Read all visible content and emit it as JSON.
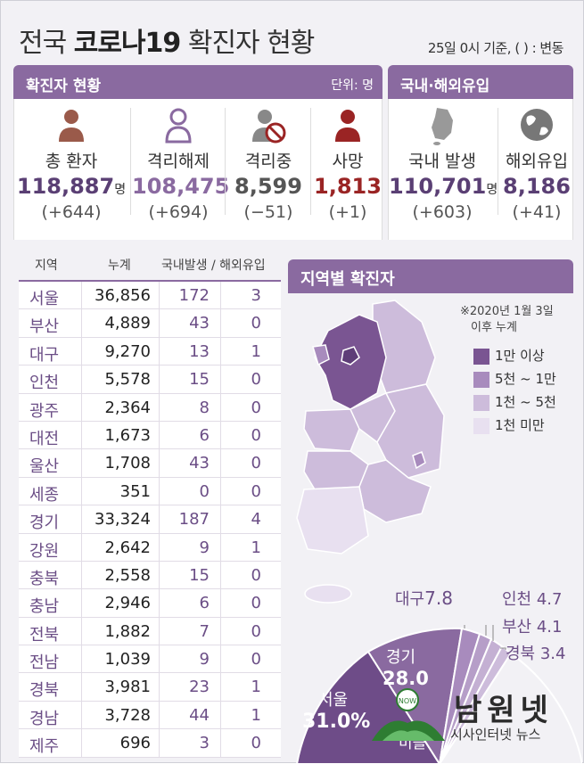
{
  "title": {
    "prefix": "전국",
    "bold": "코로나19",
    "suffix": "확진자 현황"
  },
  "timestamp": "25일 0시 기준, ( ) : 변동",
  "confirmed": {
    "header": "확진자 현황",
    "unit": "단위: 명",
    "stats": [
      {
        "label": "총 환자",
        "value": "118,887",
        "unit": "명",
        "delta": "(+644)",
        "color": "#5a3f74"
      },
      {
        "label": "격리해제",
        "value": "108,475",
        "unit": "",
        "delta": "(+694)",
        "color": "#8a6aa0"
      },
      {
        "label": "격리중",
        "value": "8,599",
        "unit": "",
        "delta": "(−51)",
        "color": "#555555"
      },
      {
        "label": "사망",
        "value": "1,813",
        "unit": "",
        "delta": "(+1)",
        "color": "#9a2424"
      }
    ]
  },
  "domestic_overseas": {
    "header": "국내·해외유입",
    "stats": [
      {
        "label": "국내 발생",
        "value": "110,701",
        "unit": "명",
        "delta": "(+603)",
        "color": "#5a3f74"
      },
      {
        "label": "해외유입",
        "value": "8,186",
        "unit": "",
        "delta": "(+41)",
        "color": "#5a3f74"
      }
    ]
  },
  "table": {
    "headers": {
      "region": "지역",
      "total": "누계",
      "domestic_overseas": "국내발생 / 해외유입"
    },
    "rows": [
      {
        "region": "서울",
        "total": "36,856",
        "domestic": "172",
        "overseas": "3"
      },
      {
        "region": "부산",
        "total": "4,889",
        "domestic": "43",
        "overseas": "0"
      },
      {
        "region": "대구",
        "total": "9,270",
        "domestic": "13",
        "overseas": "1"
      },
      {
        "region": "인천",
        "total": "5,578",
        "domestic": "15",
        "overseas": "0"
      },
      {
        "region": "광주",
        "total": "2,364",
        "domestic": "8",
        "overseas": "0"
      },
      {
        "region": "대전",
        "total": "1,673",
        "domestic": "6",
        "overseas": "0"
      },
      {
        "region": "울산",
        "total": "1,708",
        "domestic": "43",
        "overseas": "0"
      },
      {
        "region": "세종",
        "total": "351",
        "domestic": "0",
        "overseas": "0"
      },
      {
        "region": "경기",
        "total": "33,324",
        "domestic": "187",
        "overseas": "4"
      },
      {
        "region": "강원",
        "total": "2,642",
        "domestic": "9",
        "overseas": "1"
      },
      {
        "region": "충북",
        "total": "2,558",
        "domestic": "15",
        "overseas": "0"
      },
      {
        "region": "충남",
        "total": "2,946",
        "domestic": "6",
        "overseas": "0"
      },
      {
        "region": "전북",
        "total": "1,882",
        "domestic": "7",
        "overseas": "0"
      },
      {
        "region": "전남",
        "total": "1,039",
        "domestic": "9",
        "overseas": "0"
      },
      {
        "region": "경북",
        "total": "3,981",
        "domestic": "23",
        "overseas": "1"
      },
      {
        "region": "경남",
        "total": "3,728",
        "domestic": "44",
        "overseas": "1"
      },
      {
        "region": "제주",
        "total": "696",
        "domestic": "3",
        "overseas": "0"
      }
    ]
  },
  "regional": {
    "header": "지역별 확진자",
    "note_line1": "※2020년 1월 3일",
    "note_line2": "이후 누계",
    "legend": [
      {
        "label": "1만 이상",
        "color": "#7a5592"
      },
      {
        "label": "5천 ~ 1만",
        "color": "#a88bbd"
      },
      {
        "label": "1천 ~ 5천",
        "color": "#cdbcdb"
      },
      {
        "label": "1천 미만",
        "color": "#e8e0f0"
      }
    ],
    "pie": [
      {
        "label": "서울",
        "value": "31.0%"
      },
      {
        "label": "경기",
        "value": "28.0"
      },
      {
        "label": "대구",
        "value": "7.8"
      },
      {
        "label": "인천",
        "value": "4.7"
      },
      {
        "label": "부산",
        "value": "4.1"
      },
      {
        "label": "경북",
        "value": "3.4"
      },
      {
        "label": "미플",
        "value": ""
      }
    ]
  },
  "watermark": {
    "name": "남원넷",
    "sub": "시사인터넷 뉴스",
    "badge": "NOW"
  }
}
